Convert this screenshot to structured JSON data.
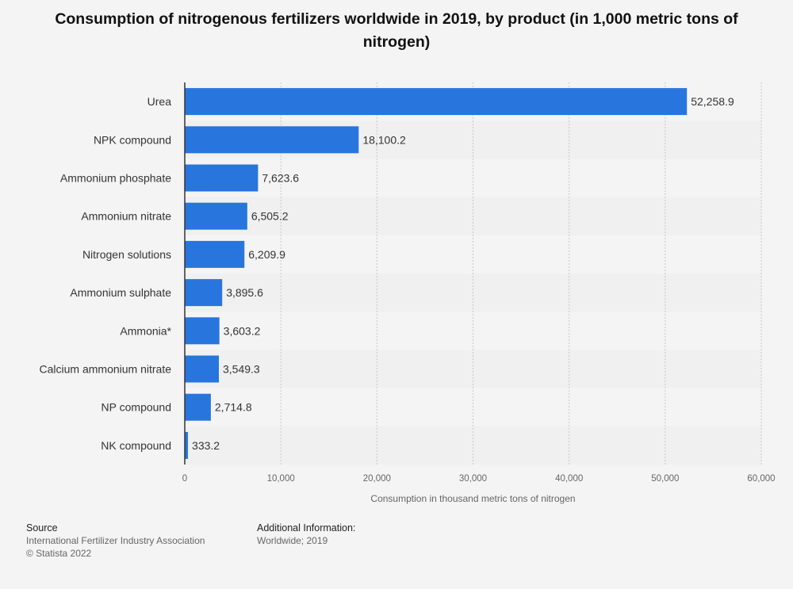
{
  "title": "Consumption of nitrogenous fertilizers worldwide in 2019, by product (in 1,000 metric tons of nitrogen)",
  "colors": {
    "bar": "#2876dd",
    "stripe": "#f0f0f0",
    "background": "#f4f4f4",
    "grid": "#c8c8c8"
  },
  "chart_data": {
    "type": "bar",
    "orientation": "horizontal",
    "categories": [
      "Urea",
      "NPK compound",
      "Ammonium phosphate",
      "Ammonium nitrate",
      "Nitrogen solutions",
      "Ammonium sulphate",
      "Ammonia*",
      "Calcium ammonium nitrate",
      "NP compound",
      "NK compound"
    ],
    "values": [
      52258.9,
      18100.2,
      7623.6,
      6505.2,
      6209.9,
      3895.6,
      3603.2,
      3549.3,
      2714.8,
      333.2
    ],
    "value_labels": [
      "52,258.9",
      "18,100.2",
      "7,623.6",
      "6,505.2",
      "6,209.9",
      "3,895.6",
      "3,603.2",
      "3,549.3",
      "2,714.8",
      "333.2"
    ],
    "xlim": [
      0,
      60000
    ],
    "xticks": [
      0,
      10000,
      20000,
      30000,
      40000,
      50000,
      60000
    ],
    "xtick_labels": [
      "0",
      "10,000",
      "20,000",
      "30,000",
      "40,000",
      "50,000",
      "60,000"
    ],
    "xlabel": "Consumption in thousand metric tons of nitrogen",
    "ylabel": "",
    "grid": true
  },
  "footer": {
    "source_heading": "Source",
    "source_line1": "International Fertilizer Industry Association",
    "source_line2": "© Statista 2022",
    "info_heading": "Additional Information:",
    "info_line1": "Worldwide; 2019"
  }
}
